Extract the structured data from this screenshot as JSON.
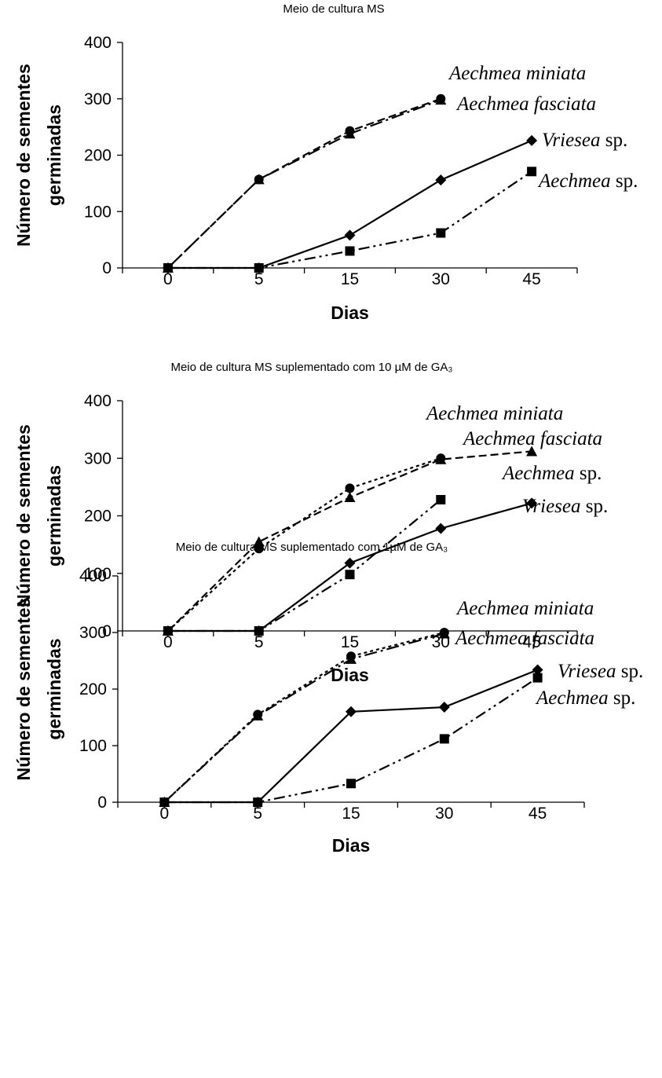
{
  "chart_data": [
    {
      "type": "line",
      "title": "Meio de cultura MS",
      "xlabel": "Dias",
      "ylabel_line1": "Número de sementes",
      "ylabel_line2": "germinadas",
      "categories": [
        "0",
        "5",
        "15",
        "30",
        "45"
      ],
      "yticks": [
        "0",
        "100",
        "200",
        "300",
        "400"
      ],
      "ylim": [
        0,
        400
      ],
      "grid": false,
      "series": [
        {
          "name": "Aechmea miniata",
          "label_italic": "Aechmea miniata",
          "label_roman": "",
          "marker": "circle",
          "dash": "10 5",
          "values": [
            0,
            157,
            243,
            300,
            null
          ]
        },
        {
          "name": "Aechmea fasciata",
          "label_italic": "Aechmea fasciata",
          "label_roman": "",
          "marker": "triangle",
          "dash": "16 5 3 5",
          "values": [
            0,
            157,
            238,
            298,
            null
          ]
        },
        {
          "name": "Vriesea sp.",
          "label_italic": "Vriesea",
          "label_roman": " sp.",
          "marker": "diamond",
          "dash": "",
          "values": [
            0,
            0,
            58,
            156,
            226
          ]
        },
        {
          "name": "Aechmea sp.",
          "label_italic": "Aechmea",
          "label_roman": " sp.",
          "marker": "square",
          "dash": "14 5 3 5 3 5",
          "values": [
            0,
            0,
            30,
            62,
            171
          ]
        }
      ]
    },
    {
      "type": "line",
      "title": "Meio de cultura MS suplementado com 10 µM de GA₃",
      "xlabel": "Dias",
      "ylabel_line1": "Número de sementes",
      "ylabel_line2": "germinadas",
      "categories": [
        "0",
        "5",
        "15",
        "30",
        "45"
      ],
      "yticks": [
        "0",
        "100",
        "200",
        "300",
        "400"
      ],
      "ylim": [
        0,
        400
      ],
      "grid": false,
      "series": [
        {
          "name": "Aechmea miniata",
          "label_italic": "Aechmea miniata",
          "label_roman": "",
          "marker": "circle",
          "dash": "4 4",
          "values": [
            0,
            143,
            248,
            300,
            null
          ]
        },
        {
          "name": "Aechmea fasciata",
          "label_italic": "Aechmea fasciata",
          "label_roman": "",
          "marker": "triangle",
          "dash": "10 5",
          "values": [
            0,
            155,
            232,
            298,
            312
          ]
        },
        {
          "name": "Aechmea sp.",
          "label_italic": "Aechmea",
          "label_roman": " sp.",
          "marker": "square",
          "dash": "14 5 3 5 3 5",
          "values": [
            0,
            0,
            98,
            228,
            null
          ]
        },
        {
          "name": "Vriesea sp.",
          "label_italic": "Vriesea",
          "label_roman": " sp.",
          "marker": "diamond",
          "dash": "",
          "values": [
            0,
            0,
            118,
            178,
            222
          ]
        }
      ]
    },
    {
      "type": "line",
      "title": "Meio de cultura MS suplementado com 1µM de GA₃",
      "xlabel": "Dias",
      "ylabel_line1": "Número de sementes",
      "ylabel_line2": "germinadas",
      "categories": [
        "0",
        "5",
        "15",
        "30",
        "45"
      ],
      "yticks": [
        "0",
        "100",
        "200",
        "300",
        "400"
      ],
      "ylim": [
        0,
        400
      ],
      "grid": false,
      "series": [
        {
          "name": "Aechmea miniata",
          "label_italic": "Aechmea miniata",
          "label_roman": "",
          "marker": "circle",
          "dash": "4 4",
          "values": [
            0,
            155,
            258,
            300,
            null
          ]
        },
        {
          "name": "Aechmea fasciata",
          "label_italic": "Aechmea fasciata",
          "label_roman": "",
          "marker": "triangle",
          "dash": "16 5 3 5",
          "values": [
            0,
            153,
            253,
            298,
            null
          ]
        },
        {
          "name": "Vriesea sp.",
          "label_italic": "Vriesea",
          "label_roman": " sp.",
          "marker": "diamond",
          "dash": "",
          "values": [
            0,
            0,
            160,
            168,
            234
          ]
        },
        {
          "name": "Aechmea sp.",
          "label_italic": "Aechmea",
          "label_roman": " sp.",
          "marker": "square",
          "dash": "14 5 3 5 3 5",
          "values": [
            0,
            0,
            33,
            112,
            220
          ]
        }
      ]
    }
  ]
}
